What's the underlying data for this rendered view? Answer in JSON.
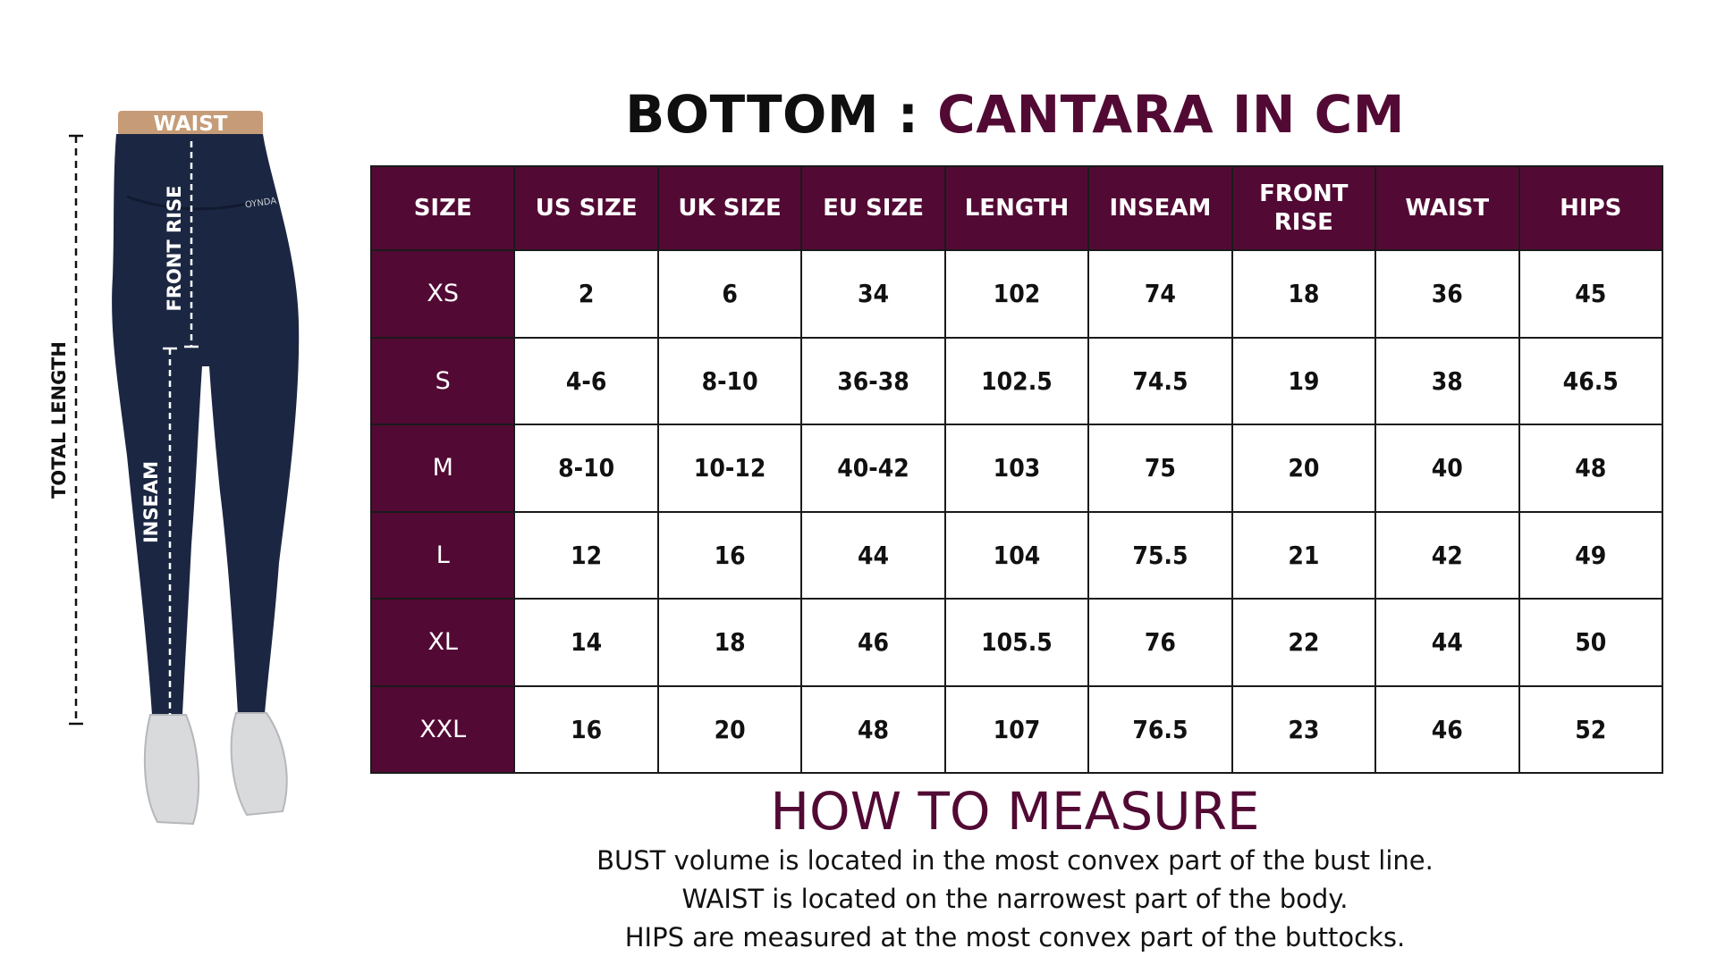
{
  "figure": {
    "labels": {
      "waist": "WAIST",
      "front_rise": "FRONT RISE",
      "total_length": "TOTAL LENGTH",
      "inseam": "INSEAM"
    },
    "brand_mark": "OYNDA"
  },
  "title": {
    "main": "BOTTOM : ",
    "accent": "CANTARA IN CM"
  },
  "table": {
    "headers": [
      "SIZE",
      "US SIZE",
      "UK SIZE",
      "EU SIZE",
      "LENGTH",
      "INSEAM",
      "FRONT RISE",
      "WAIST",
      "HIPS"
    ],
    "rows": [
      [
        "XS",
        "2",
        "6",
        "34",
        "102",
        "74",
        "18",
        "36",
        "45"
      ],
      [
        "S",
        "4-6",
        "8-10",
        "36-38",
        "102.5",
        "74.5",
        "19",
        "38",
        "46.5"
      ],
      [
        "M",
        "8-10",
        "10-12",
        "40-42",
        "103",
        "75",
        "20",
        "40",
        "48"
      ],
      [
        "L",
        "12",
        "16",
        "44",
        "104",
        "75.5",
        "21",
        "42",
        "49"
      ],
      [
        "XL",
        "14",
        "18",
        "46",
        "105.5",
        "76",
        "22",
        "44",
        "50"
      ],
      [
        "XXL",
        "16",
        "20",
        "48",
        "107",
        "76.5",
        "23",
        "46",
        "52"
      ]
    ]
  },
  "how_to_measure": {
    "title": "HOW TO MEASURE",
    "lines": [
      "BUST volume is located in the most convex part of the bust line.",
      "WAIST is located on the narrowest part of the body.",
      "HIPS are measured at the most convex part of the buttocks."
    ]
  },
  "colors": {
    "accent": "#520a34",
    "pants": "#1b2742",
    "waistband": "#c69c78",
    "shoes": "#d9dadc"
  }
}
